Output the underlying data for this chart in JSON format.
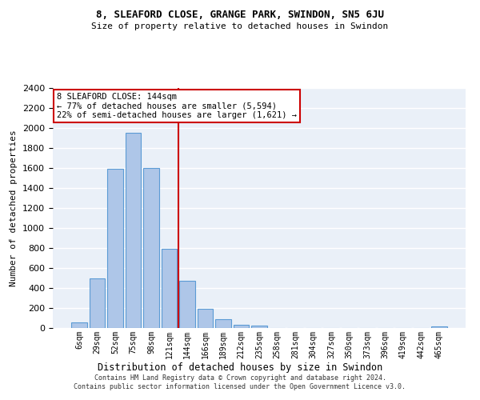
{
  "title": "8, SLEAFORD CLOSE, GRANGE PARK, SWINDON, SN5 6JU",
  "subtitle": "Size of property relative to detached houses in Swindon",
  "xlabel": "Distribution of detached houses by size in Swindon",
  "ylabel": "Number of detached properties",
  "categories": [
    "6sqm",
    "29sqm",
    "52sqm",
    "75sqm",
    "98sqm",
    "121sqm",
    "144sqm",
    "166sqm",
    "189sqm",
    "212sqm",
    "235sqm",
    "258sqm",
    "281sqm",
    "304sqm",
    "327sqm",
    "350sqm",
    "373sqm",
    "396sqm",
    "419sqm",
    "442sqm",
    "465sqm"
  ],
  "values": [
    60,
    500,
    1590,
    1950,
    1600,
    790,
    470,
    195,
    90,
    35,
    25,
    0,
    0,
    0,
    0,
    0,
    0,
    0,
    0,
    0,
    20
  ],
  "bar_color": "#aec6e8",
  "bar_edge_color": "#5b9bd5",
  "highlight_index": 6,
  "highlight_color": "#cc0000",
  "annotation_title": "8 SLEAFORD CLOSE: 144sqm",
  "annotation_line1": "← 77% of detached houses are smaller (5,594)",
  "annotation_line2": "22% of semi-detached houses are larger (1,621) →",
  "annotation_box_color": "#ffffff",
  "annotation_box_edge_color": "#cc0000",
  "ylim": [
    0,
    2400
  ],
  "yticks": [
    0,
    200,
    400,
    600,
    800,
    1000,
    1200,
    1400,
    1600,
    1800,
    2000,
    2200,
    2400
  ],
  "background_color": "#eaf0f8",
  "grid_color": "#ffffff",
  "footer1": "Contains HM Land Registry data © Crown copyright and database right 2024.",
  "footer2": "Contains public sector information licensed under the Open Government Licence v3.0."
}
